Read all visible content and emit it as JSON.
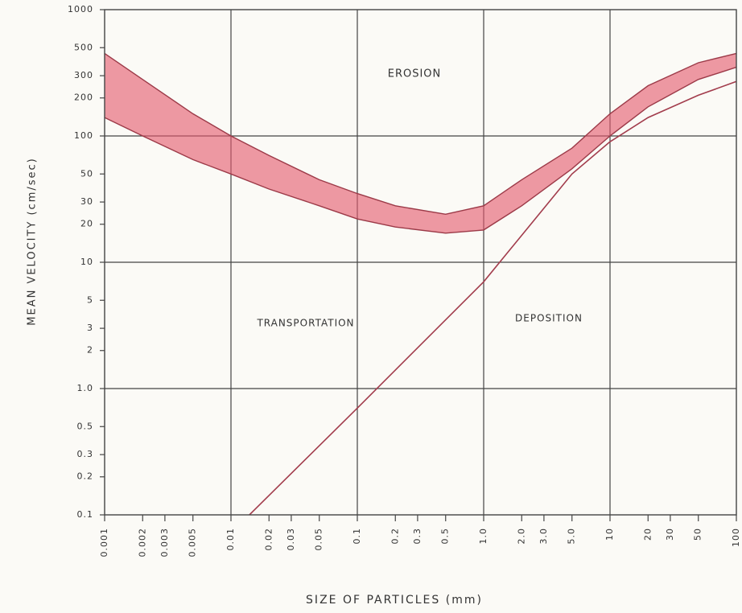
{
  "chart_data": {
    "type": "line",
    "xlabel": "SIZE OF PARTICLES (mm)",
    "ylabel": "MEAN VELOCITY (cm/sec)",
    "annotations": [
      "EROSION",
      "TRANSPORTATION",
      "DEPOSITION"
    ],
    "xscale": "log",
    "yscale": "log",
    "xlim": [
      0.001,
      100
    ],
    "ylim": [
      0.1,
      1000
    ],
    "xticks": [
      0.001,
      0.002,
      0.003,
      0.005,
      0.01,
      0.02,
      0.03,
      0.05,
      0.1,
      0.2,
      0.3,
      0.5,
      {
        "value": 1,
        "label": "1.0"
      },
      {
        "value": 2,
        "label": "2.0"
      },
      {
        "value": 3,
        "label": "3.0"
      },
      {
        "value": 5,
        "label": "5.0"
      },
      10,
      20,
      30,
      50,
      100
    ],
    "yticks": [
      0.1,
      0.2,
      0.3,
      0.5,
      {
        "value": 1,
        "label": "1.0"
      },
      2,
      3,
      5,
      10,
      20,
      30,
      50,
      100,
      200,
      300,
      500,
      1000
    ],
    "xgrid": [
      0.01,
      0.1,
      1,
      10
    ],
    "ygrid": [
      1,
      10,
      100
    ],
    "band": {
      "color": "#e5566a",
      "edge_color": "#9c3a48",
      "x": [
        0.001,
        0.002,
        0.005,
        0.01,
        0.02,
        0.05,
        0.1,
        0.2,
        0.5,
        1,
        2,
        5,
        10,
        20,
        50,
        100
      ],
      "upper": [
        450,
        280,
        150,
        100,
        70,
        45,
        35,
        28,
        24,
        28,
        45,
        80,
        150,
        250,
        380,
        450
      ],
      "lower": [
        140,
        100,
        65,
        50,
        38,
        28,
        22,
        19,
        17,
        18,
        28,
        55,
        100,
        170,
        280,
        350
      ]
    },
    "series": [
      {
        "color": "#a23c4c",
        "x": [
          0.014,
          0.1,
          1,
          5,
          10,
          20,
          50,
          100
        ],
        "values": [
          0.1,
          0.7,
          7,
          50,
          90,
          140,
          210,
          270
        ]
      }
    ]
  }
}
